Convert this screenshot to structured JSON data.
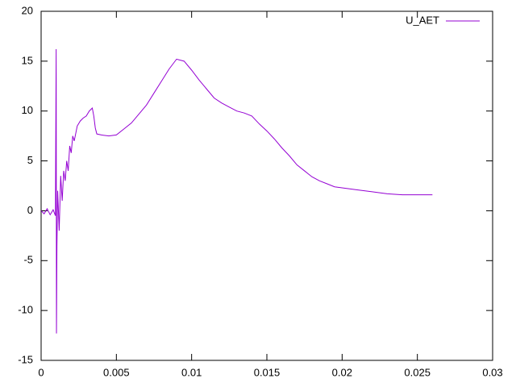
{
  "chart_data": {
    "type": "line",
    "x": [
      0,
      0.0002,
      0.0004,
      0.0006,
      0.0008,
      0.00095,
      0.001,
      0.00102,
      0.00105,
      0.0011,
      0.0012,
      0.0013,
      0.0014,
      0.0015,
      0.0016,
      0.0017,
      0.0018,
      0.0019,
      0.002,
      0.0021,
      0.0022,
      0.0024,
      0.0026,
      0.0028,
      0.003,
      0.0032,
      0.0034,
      0.0035,
      0.0036,
      0.0037,
      0.004,
      0.0045,
      0.005,
      0.0055,
      0.006,
      0.0065,
      0.007,
      0.0075,
      0.008,
      0.0085,
      0.009,
      0.0095,
      0.01,
      0.0105,
      0.011,
      0.0115,
      0.012,
      0.0125,
      0.013,
      0.0135,
      0.014,
      0.0145,
      0.015,
      0.0155,
      0.016,
      0.0165,
      0.017,
      0.0175,
      0.018,
      0.0185,
      0.019,
      0.0195,
      0.02,
      0.021,
      0.022,
      0.023,
      0.024,
      0.025,
      0.026
    ],
    "series": [
      {
        "name": "U_AET",
        "color": "#9400d3",
        "values": [
          0,
          -0.3,
          0.2,
          -0.4,
          0.1,
          -0.5,
          16.2,
          -12.3,
          -3.5,
          2,
          -2,
          3.5,
          1,
          4,
          3,
          5,
          4,
          6.5,
          5.8,
          7.5,
          7,
          8.5,
          9,
          9.3,
          9.5,
          10,
          10.3,
          9.5,
          8.3,
          7.7,
          7.6,
          7.5,
          7.6,
          8.2,
          8.8,
          9.7,
          10.6,
          11.8,
          13.0,
          14.2,
          15.2,
          15.0,
          14.1,
          13.1,
          12.2,
          11.3,
          10.8,
          10.4,
          10.0,
          9.8,
          9.5,
          8.7,
          8.0,
          7.2,
          6.3,
          5.5,
          4.6,
          4.0,
          3.4,
          3.0,
          2.7,
          2.4,
          2.3,
          2.1,
          1.9,
          1.7,
          1.6,
          1.6,
          1.6
        ]
      }
    ],
    "xlim": [
      0,
      0.03
    ],
    "xticks": [
      0,
      0.005,
      0.01,
      0.015,
      0.02,
      0.025,
      0.03
    ],
    "ylim": [
      -15,
      20
    ],
    "yticks": [
      -15,
      -10,
      -5,
      0,
      5,
      10,
      15,
      20
    ],
    "legend": "top-right"
  }
}
